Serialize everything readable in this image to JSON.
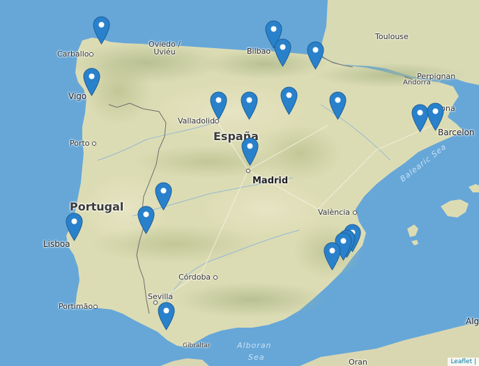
{
  "map": {
    "colors": {
      "sea": "#66a7d8",
      "land": "#dcdcb6",
      "land_dark": "#bfc596",
      "marker": "#2a81cb",
      "marker_dark": "#1c5e97",
      "border": "#6b6b6b"
    },
    "country_labels": {
      "spain": "España",
      "portugal": "Portugal"
    },
    "cities": {
      "carballo": "Carballo",
      "oviedo": "Oviedo / Uviéu",
      "bilbao": "Bilbao",
      "toulouse": "Toulouse",
      "vigo": "Vigo",
      "perpignan": "Perpignan",
      "andorra": "Andorra",
      "girona": "rona",
      "valladolid": "Valladolid",
      "barcelona": "Barcelon",
      "porto": "Porto",
      "madrid": "Madrid",
      "valencia": "València",
      "lisboa": "Lisboa",
      "cordoba": "Córdoba",
      "portimao": "Portimão",
      "sevilla": "Sevilla",
      "gibraltar": "Gibraltar",
      "oran": "Oran",
      "alg": "Alg"
    },
    "seas": {
      "balearic": "Balearic Sea",
      "alboran_1": "Alboran",
      "alboran_2": "Sea"
    },
    "marker_count": 21,
    "attribution": "Leaflet |"
  }
}
